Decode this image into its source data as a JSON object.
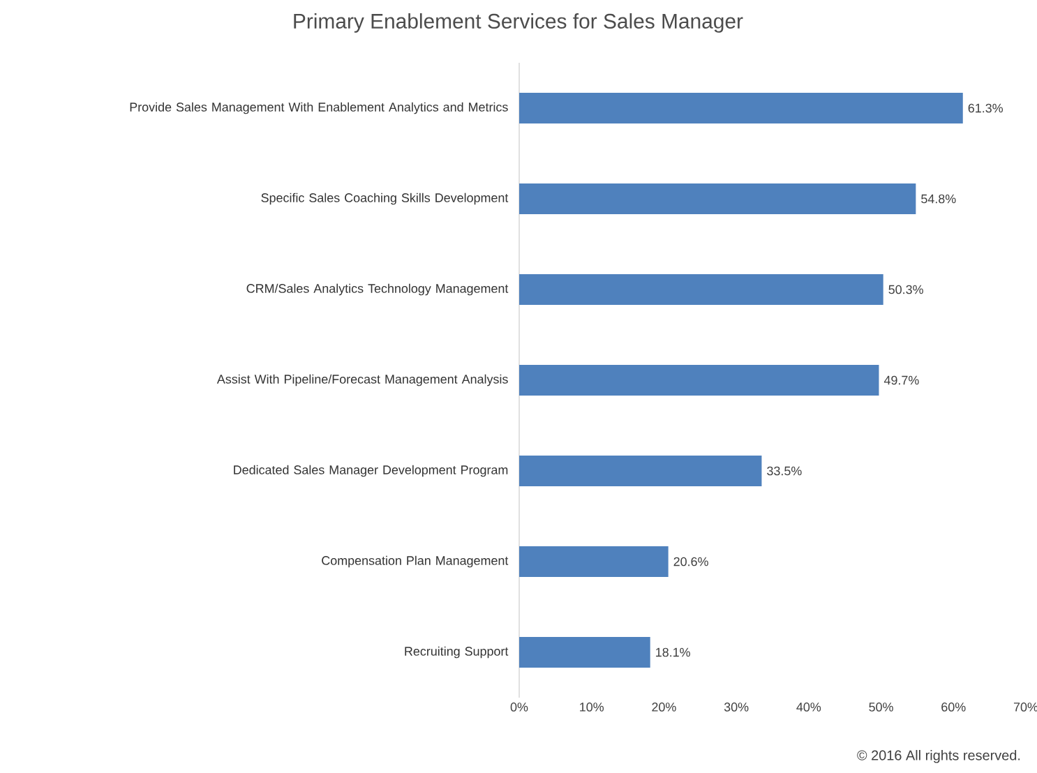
{
  "chart_data": {
    "type": "bar",
    "orientation": "horizontal",
    "title": "Primary Enablement Services for Sales Manager",
    "categories": [
      "Provide Sales Management With Enablement Analytics and Metrics",
      "Specific Sales Coaching Skills Development",
      "CRM/Sales Analytics Technology Management",
      "Assist With Pipeline/Forecast Management Analysis",
      "Dedicated Sales Manager Development Program",
      "Compensation Plan Management",
      "Recruiting Support"
    ],
    "values": [
      61.3,
      54.8,
      50.3,
      49.7,
      33.5,
      20.6,
      18.1
    ],
    "value_labels": [
      "61.3%",
      "54.8%",
      "50.3%",
      "49.7%",
      "33.5%",
      "20.6%",
      "18.1%"
    ],
    "color": "#4f81bd",
    "xlim": [
      0,
      70
    ],
    "xticks": [
      {
        "value": 0,
        "label": "0%"
      },
      {
        "value": 10,
        "label": "10%"
      },
      {
        "value": 20,
        "label": "20%"
      },
      {
        "value": 30,
        "label": "30%"
      },
      {
        "value": 40,
        "label": "40%"
      },
      {
        "value": 50,
        "label": "50%"
      },
      {
        "value": 60,
        "label": "60%"
      },
      {
        "value": 70,
        "label": "70%"
      }
    ],
    "grid": false,
    "annotations": [
      "© 2016 All rights reserved."
    ]
  }
}
